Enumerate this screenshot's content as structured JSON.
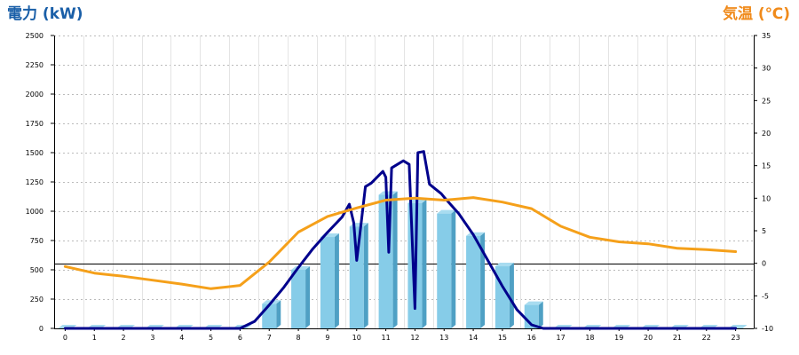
{
  "chart_data": {
    "type": "bar",
    "left_axis_title": "電力 (kW)",
    "right_axis_title": "気温 (℃)",
    "categories": [
      "0",
      "1",
      "2",
      "3",
      "4",
      "5",
      "6",
      "7",
      "8",
      "9",
      "10",
      "11",
      "12",
      "13",
      "14",
      "15",
      "16",
      "17",
      "18",
      "19",
      "20",
      "21",
      "22",
      "23"
    ],
    "y_left": {
      "min": 0,
      "max": 2500,
      "ticks": [
        "0",
        "250",
        "500",
        "750",
        "1000",
        "1250",
        "1500",
        "1750",
        "2000",
        "2250",
        "2500"
      ]
    },
    "y_right": {
      "min": -10,
      "max": 35,
      "ticks": [
        "-10",
        "-5",
        "0",
        "5",
        "10",
        "15",
        "20",
        "25",
        "30",
        "35"
      ]
    },
    "grid": true,
    "series": [
      {
        "kind": "bar",
        "axis": "left",
        "values": [
          0,
          0,
          0,
          0,
          0,
          0,
          0,
          210,
          500,
          780,
          870,
          1140,
          1070,
          980,
          790,
          530,
          200,
          0,
          0,
          0,
          0,
          0,
          0,
          0
        ]
      },
      {
        "kind": "line",
        "axis": "left",
        "x": [
          0,
          6,
          6.5,
          7,
          7.5,
          8,
          8.5,
          9,
          9.5,
          9.75,
          9.9,
          10,
          10.1,
          10.3,
          10.5,
          10.7,
          10.9,
          11,
          11.1,
          11.2,
          11.4,
          11.6,
          11.8,
          12,
          12.1,
          12.3,
          12.5,
          12.7,
          12.9,
          13,
          13.5,
          14,
          14.5,
          15,
          15.5,
          16,
          16.4,
          16.6,
          17,
          23
        ],
        "y": [
          0,
          0,
          60,
          200,
          350,
          520,
          680,
          820,
          950,
          1060,
          900,
          580,
          780,
          1210,
          1240,
          1290,
          1340,
          1290,
          650,
          1370,
          1400,
          1430,
          1400,
          170,
          1500,
          1510,
          1230,
          1190,
          1150,
          1120,
          980,
          800,
          580,
          360,
          160,
          30,
          0,
          0,
          0,
          0
        ]
      },
      {
        "kind": "line",
        "axis": "right",
        "x": [
          0,
          1,
          2,
          3,
          4,
          5,
          6,
          7,
          8,
          9,
          10,
          11,
          12,
          13,
          14,
          15,
          16,
          17,
          18,
          19,
          20,
          21,
          22,
          23
        ],
        "y": [
          -0.5,
          -1.5,
          -2.0,
          -2.6,
          -3.2,
          -3.9,
          -3.4,
          0.2,
          4.8,
          7.2,
          8.5,
          9.7,
          10.0,
          9.7,
          10.1,
          9.4,
          8.4,
          5.7,
          4.0,
          3.3,
          3.0,
          2.3,
          2.1,
          1.8
        ]
      }
    ],
    "colors": {
      "bar_front": "#86CCE8",
      "bar_side": "#4FA0C4",
      "bar_top": "#A8DCF0",
      "power_line": "#00008C",
      "temp_line": "#F5A01A",
      "left_title": "#1A5FA8",
      "right_title": "#F08A1A",
      "grid": "#BBBBBB",
      "zero_line": "#000000"
    }
  }
}
